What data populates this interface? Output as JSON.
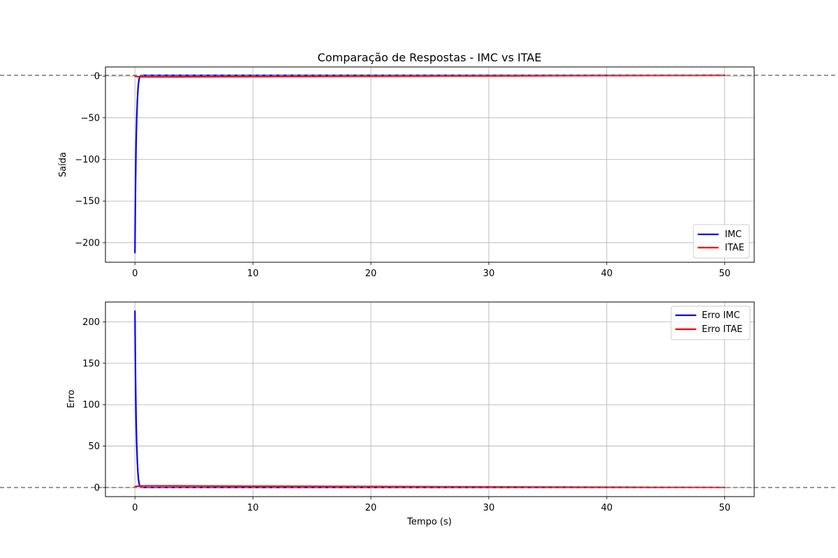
{
  "chart_data": [
    {
      "type": "line",
      "title": "Comparação de Respostas - IMC vs ITAE",
      "xlabel": "",
      "ylabel": "Saída",
      "xlim": [
        -2.5,
        52.5
      ],
      "ylim": [
        -223.5,
        11
      ],
      "xticks": [
        0,
        10,
        20,
        30,
        40,
        50
      ],
      "yticks": [
        0,
        -50,
        -100,
        -150,
        -200
      ],
      "ytick_labels": [
        "0",
        "−50",
        "−100",
        "−150",
        "−200"
      ],
      "grid": true,
      "legend_position": "lower-right",
      "reference_line": {
        "y": 1,
        "style": "dashed",
        "color": "#808080"
      },
      "series": [
        {
          "name": "IMC",
          "color": "#0000ff",
          "x": [
            0,
            0.02,
            0.05,
            0.08,
            0.1,
            0.15,
            0.2,
            0.25,
            0.3,
            0.35,
            0.4,
            0.5,
            0.6,
            0.7,
            0.8,
            1,
            1.5,
            2,
            5,
            10,
            20,
            30,
            40,
            50
          ],
          "y": [
            -212,
            -175,
            -132,
            -99,
            -80,
            -51,
            -31,
            -17.5,
            -8.8,
            -4,
            -1.2,
            0.5,
            0.9,
            1,
            1,
            1,
            1,
            1,
            1,
            1,
            1,
            1,
            1,
            1
          ]
        },
        {
          "name": "ITAE",
          "color": "#ff0000",
          "x": [
            0,
            0.2,
            0.5,
            1,
            2,
            5,
            10,
            15,
            20,
            25,
            30,
            35,
            40,
            45,
            50
          ],
          "y": [
            0,
            -0.6,
            -0.9,
            -1,
            -1,
            -0.9,
            -0.6,
            -0.4,
            -0.2,
            0,
            0.2,
            0.4,
            0.6,
            0.8,
            1
          ]
        }
      ]
    },
    {
      "type": "line",
      "title": "",
      "xlabel": "Tempo (s)",
      "ylabel": "Erro",
      "xlim": [
        -2.5,
        52.5
      ],
      "ylim": [
        -11,
        224
      ],
      "xticks": [
        0,
        10,
        20,
        30,
        40,
        50
      ],
      "yticks": [
        0,
        50,
        100,
        150,
        200
      ],
      "ytick_labels": [
        "0",
        "50",
        "100",
        "150",
        "200"
      ],
      "grid": true,
      "legend_position": "upper-right",
      "reference_line": {
        "y": 0,
        "style": "dashed",
        "color": "#808080"
      },
      "series": [
        {
          "name": "Erro IMC",
          "color": "#0000ff",
          "x": [
            0,
            0.02,
            0.05,
            0.08,
            0.1,
            0.15,
            0.2,
            0.25,
            0.3,
            0.35,
            0.4,
            0.5,
            0.6,
            0.7,
            0.8,
            1,
            1.5,
            2,
            5,
            10,
            20,
            30,
            40,
            50
          ],
          "y": [
            213,
            176,
            133,
            100,
            81,
            52,
            32,
            18.5,
            9.8,
            5,
            2.2,
            0.5,
            0.1,
            0,
            0,
            0,
            0,
            0,
            0,
            0,
            0,
            0,
            0,
            0
          ]
        },
        {
          "name": "Erro ITAE",
          "color": "#ff0000",
          "x": [
            0,
            0.2,
            0.5,
            1,
            2,
            5,
            10,
            15,
            20,
            25,
            30,
            35,
            40,
            45,
            50
          ],
          "y": [
            1,
            1.6,
            1.9,
            2,
            2,
            1.9,
            1.6,
            1.4,
            1.2,
            1,
            0.8,
            0.6,
            0.4,
            0.2,
            0
          ]
        }
      ]
    }
  ]
}
